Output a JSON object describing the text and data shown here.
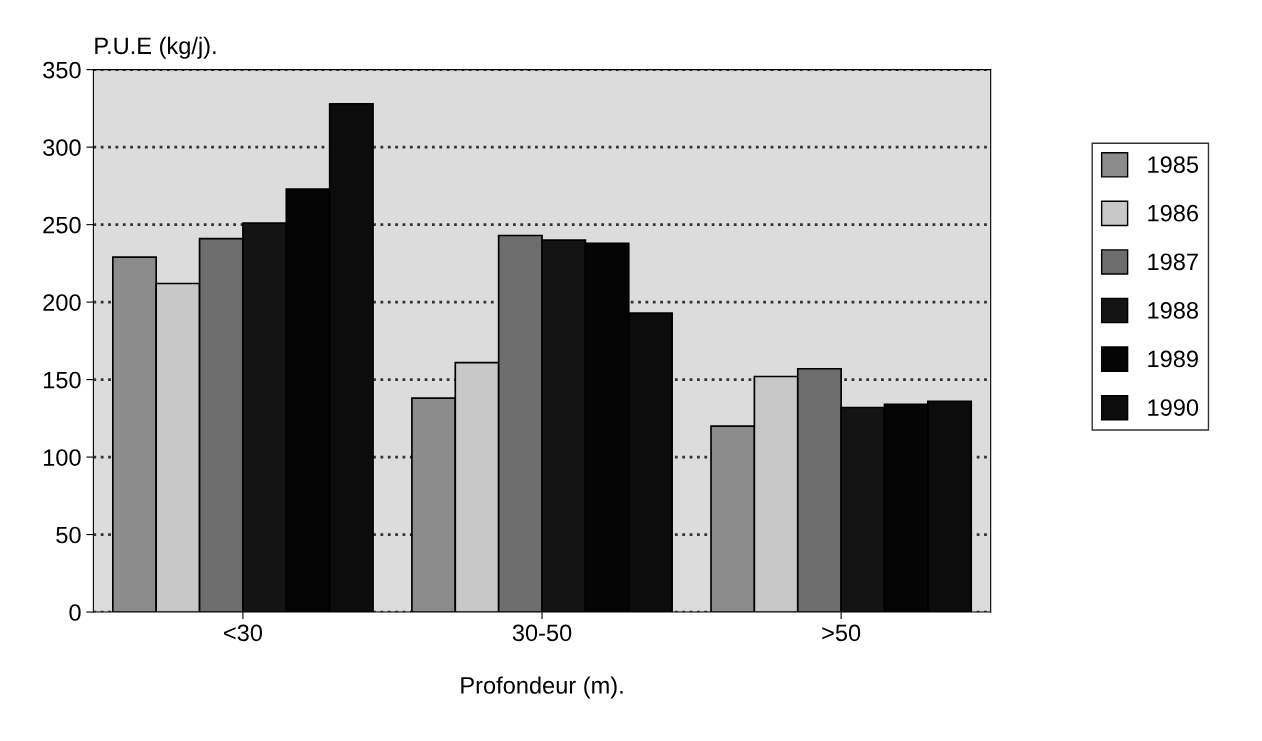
{
  "chart_data": {
    "type": "bar",
    "ylabel": "P.U.E (kg/j).",
    "xlabel": "Profondeur (m).",
    "categories": [
      "<30",
      "30-50",
      ">50"
    ],
    "series": [
      {
        "name": "1985",
        "color": "#8c8c8c",
        "values": [
          229,
          138,
          120
        ]
      },
      {
        "name": "1986",
        "color": "#c8c8c8",
        "values": [
          212,
          161,
          152
        ]
      },
      {
        "name": "1987",
        "color": "#6e6e6e",
        "values": [
          241,
          243,
          157
        ]
      },
      {
        "name": "1988",
        "color": "#141414",
        "values": [
          251,
          240,
          132
        ]
      },
      {
        "name": "1989",
        "color": "#050505",
        "values": [
          273,
          238,
          134
        ]
      },
      {
        "name": "1990",
        "color": "#0c0c0c",
        "values": [
          328,
          193,
          136
        ]
      }
    ],
    "ylim": [
      0,
      350
    ],
    "yticks": [
      0,
      50,
      100,
      150,
      200,
      250,
      300,
      350
    ],
    "grid": "y",
    "legend": "right"
  }
}
